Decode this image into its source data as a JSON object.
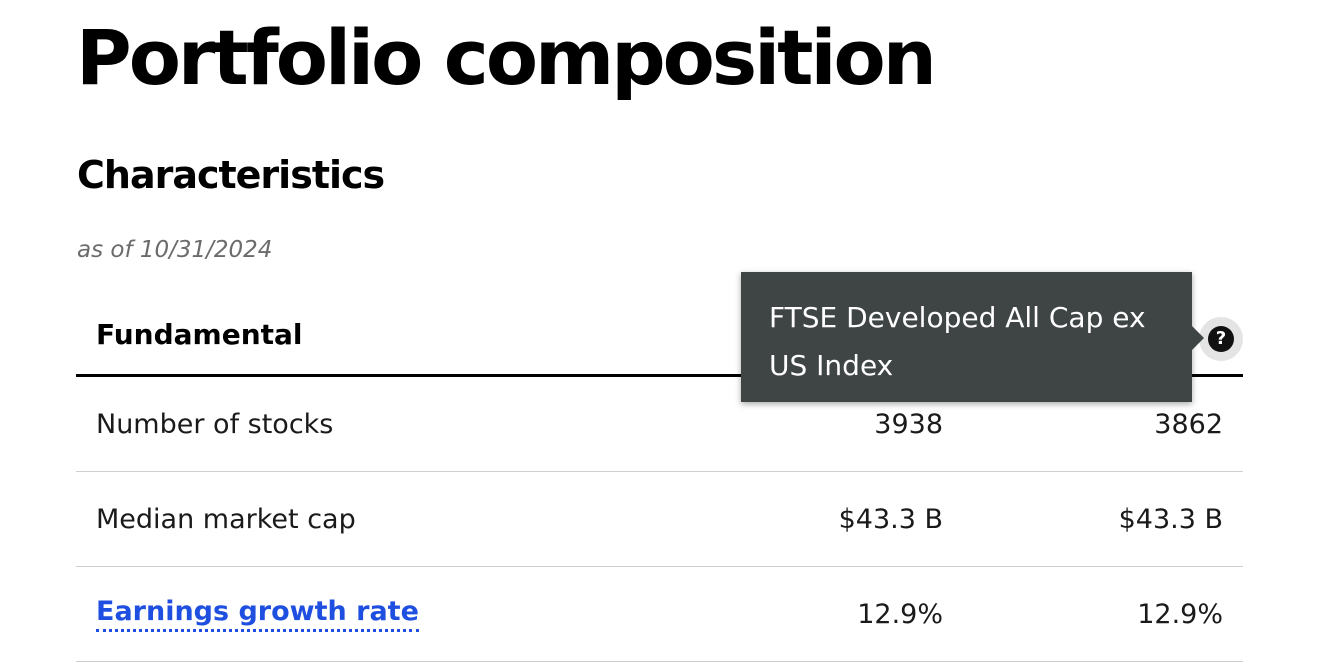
{
  "page": {
    "title": "Portfolio composition"
  },
  "section": {
    "title": "Characteristics",
    "as_of": "as of 10/31/2024"
  },
  "table": {
    "header": {
      "label": "Fundamental"
    },
    "rows": [
      {
        "label": "Number of stocks",
        "col1": "3938",
        "col2": "3862"
      },
      {
        "label": "Median market cap",
        "col1": "$43.3 B",
        "col2": "$43.3 B"
      },
      {
        "label": "Earnings growth rate",
        "col1": "12.9%",
        "col2": "12.9%"
      }
    ]
  },
  "tooltip": {
    "text": "FTSE Developed All Cap ex US Index"
  },
  "icons": {
    "help": "question-circle-icon"
  },
  "colors": {
    "link": "#1f4fe0",
    "tooltip_bg": "#3f4444",
    "divider": "#cfcfcf"
  }
}
